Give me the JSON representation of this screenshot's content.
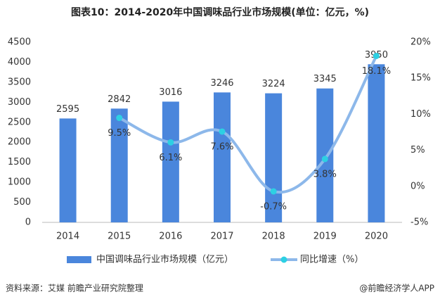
{
  "title": "图表10：2014-2020年中国调味品行业市场规模(单位：亿元，%)",
  "chart_data": {
    "type": "bar",
    "categories": [
      "2014",
      "2015",
      "2016",
      "2017",
      "2018",
      "2019",
      "2020"
    ],
    "series": [
      {
        "name": "中国调味品行业市场规模（亿元）",
        "type": "bar",
        "color": "#4a86dc",
        "values": [
          2595,
          2842,
          3016,
          3246,
          3224,
          3345,
          3950
        ]
      },
      {
        "name": "同比增速（%）",
        "type": "line",
        "axis": "y2",
        "color": "#8db8ea",
        "marker_color": "#2dd0e3",
        "values": [
          null,
          9.5,
          6.1,
          7.6,
          -0.7,
          3.8,
          18.1
        ],
        "value_labels": [
          null,
          "9.5%",
          "6.1%",
          "7.6%",
          "-0.7%",
          "3.8%",
          "18.1%"
        ]
      }
    ],
    "ylim": [
      0,
      4500
    ],
    "yticks": [
      0,
      500,
      1000,
      1500,
      2000,
      2500,
      3000,
      3500,
      4000,
      4500
    ],
    "y2lim": [
      -5,
      20
    ],
    "y2ticks": [
      {
        "value": -5,
        "label": "-5%"
      },
      {
        "value": 0,
        "label": "0%"
      },
      {
        "value": 5,
        "label": "5%"
      },
      {
        "value": 10,
        "label": "10%"
      },
      {
        "value": 15,
        "label": "15%"
      },
      {
        "value": 20,
        "label": "20%"
      }
    ],
    "grid": false
  },
  "footer": {
    "source": "资料来源：艾媒 前瞻产业研究院整理",
    "brand": "@前瞻经济学人APP"
  }
}
